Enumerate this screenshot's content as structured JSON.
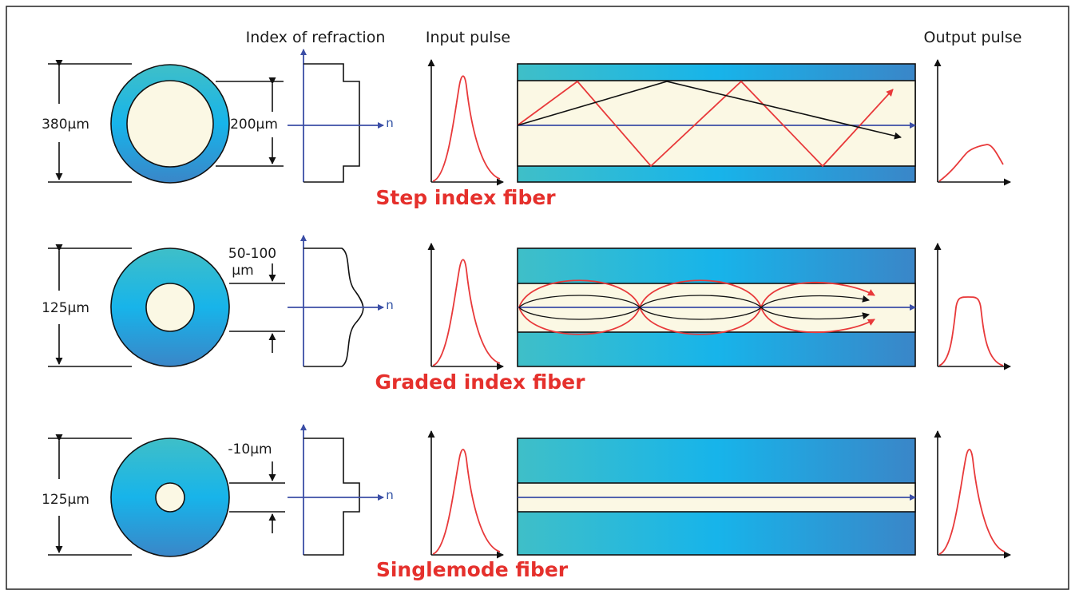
{
  "headers": {
    "index_of_refraction": "Index of refraction",
    "input_pulse": "Input pulse",
    "output_pulse": "Output pulse"
  },
  "axis_label": "n",
  "fibers": [
    {
      "name": "Step index fiber",
      "outer_diameter": "380µm",
      "core_diameter": "200µm"
    },
    {
      "name": "Graded index fiber",
      "outer_diameter": "125µm",
      "core_diameter_line1": "50-100",
      "core_diameter_line2": "µm"
    },
    {
      "name": "Singlemode fiber",
      "outer_diameter": "125µm",
      "core_diameter": "-10µm"
    }
  ],
  "colors": {
    "cladding_light": "#3fbfc8",
    "cladding_mid": "#17b4ea",
    "cladding_dark": "#3a86c8",
    "core": "#fbf8e4",
    "title_red": "#e5302c",
    "pulse_red": "#e8393a",
    "axis_blue": "#3b4ea6"
  }
}
